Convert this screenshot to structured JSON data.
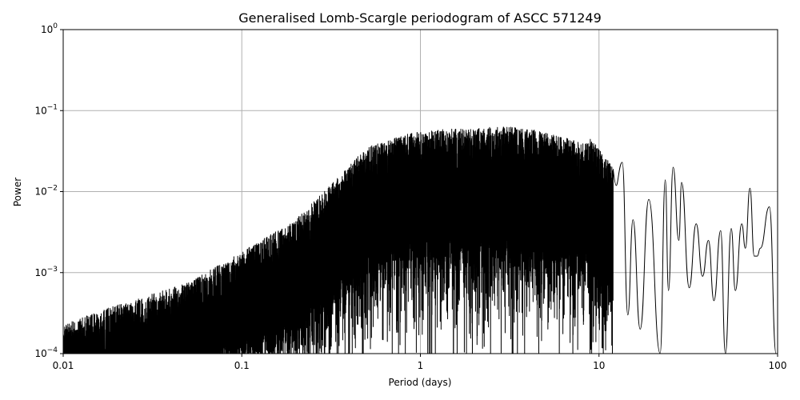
{
  "chart_data": {
    "type": "line",
    "title": "Generalised Lomb-Scargle periodogram of ASCC 571249",
    "xlabel": "Period (days)",
    "ylabel": "Power",
    "x_scale": "log",
    "y_scale": "log",
    "xlim": [
      0.01,
      100
    ],
    "ylim": [
      0.0001,
      1
    ],
    "grid": true,
    "x_ticks": [
      {
        "value": 0.01,
        "label": "0.01"
      },
      {
        "value": 0.1,
        "label": "0.1"
      },
      {
        "value": 1,
        "label": "1"
      },
      {
        "value": 10,
        "label": "10"
      },
      {
        "value": 100,
        "label": "100"
      }
    ],
    "y_ticks": [
      {
        "value": 0.0001,
        "base": "10",
        "exp": "−4"
      },
      {
        "value": 0.001,
        "base": "10",
        "exp": "−3"
      },
      {
        "value": 0.01,
        "base": "10",
        "exp": "−2"
      },
      {
        "value": 0.1,
        "base": "10",
        "exp": "−1"
      },
      {
        "value": 1,
        "base": "10",
        "exp": "0"
      }
    ],
    "line_color": "#000000",
    "grid_color": "#b0b0b0",
    "envelope": {
      "description_free": true,
      "period": [
        0.01,
        0.02,
        0.05,
        0.1,
        0.2,
        0.3,
        0.5,
        0.8,
        1.0,
        1.5,
        2.0,
        3.0,
        5.0,
        8.0,
        9.0,
        12.0
      ],
      "upper_power": [
        0.00023,
        0.0004,
        0.00075,
        0.0018,
        0.0045,
        0.011,
        0.035,
        0.05,
        0.055,
        0.06,
        0.06,
        0.065,
        0.055,
        0.04,
        0.045,
        0.02
      ]
    },
    "peaks": {
      "period": [
        13.5,
        15.5,
        19.0,
        23.5,
        26.0,
        29.0,
        35.0,
        41.0,
        48.0,
        55.0,
        63.0,
        70.0,
        77.0,
        90.0
      ],
      "power": [
        0.023,
        0.0045,
        0.008,
        0.014,
        0.02,
        0.013,
        0.004,
        0.0025,
        0.0033,
        0.0035,
        0.004,
        0.011,
        0.0016,
        0.0065
      ]
    },
    "troughs": {
      "period": [
        14.5,
        17.0,
        22.0,
        24.5,
        28.0,
        32.0,
        38.0,
        44.0,
        51.0,
        58.0,
        66.0,
        74.0,
        80.0,
        98.0
      ],
      "power": [
        0.0003,
        0.0002,
        0.0001,
        0.0006,
        0.0025,
        0.00065,
        0.0009,
        0.00045,
        0.0001,
        0.0006,
        0.002,
        0.0016,
        0.002,
        0.0001
      ]
    }
  }
}
